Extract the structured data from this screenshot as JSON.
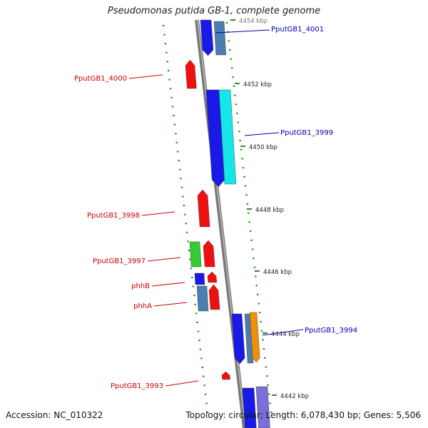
{
  "title": "Pseudomonas putida GB-1, complete genome",
  "footer": {
    "accession": "Accession: NC_010322",
    "summary": "Topology: circular; Length: 6,078,430 bp; Genes: 5,506"
  },
  "colors": {
    "backbone": "#8a8a8a",
    "dots": "#2e8b2e",
    "label_red": "#cc0000",
    "label_blue": "#0000aa",
    "blue": "#1a1ae6",
    "steel": "#4a7db0",
    "cyan": "#16e6e6",
    "red": "#ee1111",
    "green": "#33cc33",
    "orange": "#f0900a",
    "lavender": "#7a6fd6"
  },
  "ticks": [
    "4454 kbp",
    "4452 kbp",
    "4450 kbp",
    "4448 kbp",
    "4446 kbp",
    "4444 kbp",
    "4442 kbp"
  ],
  "genes": [
    {
      "label": "PputGB1_4001",
      "color": "blue"
    },
    {
      "label": "PputGB1_4000",
      "color": "red"
    },
    {
      "label": "PputGB1_3999",
      "color": "blue"
    },
    {
      "label": "PputGB1_3998",
      "color": "red"
    },
    {
      "label": "PputGB1_3997",
      "color": "red"
    },
    {
      "label": "phhB",
      "color": "red"
    },
    {
      "label": "phhA",
      "color": "red"
    },
    {
      "label": "PputGB1_3994",
      "color": "blue"
    },
    {
      "label": "PputGB1_3993",
      "color": "red"
    }
  ]
}
